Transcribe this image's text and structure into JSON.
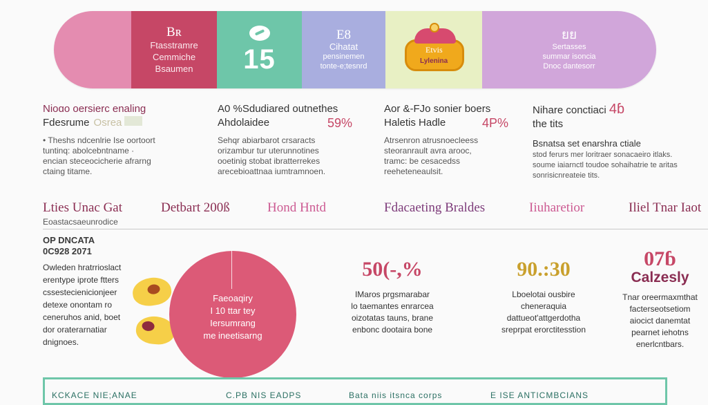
{
  "banner": {
    "seg1": {
      "top": "Bʀ",
      "lines": [
        "Ftasstramre",
        "Cemmiche",
        "Bsaumen"
      ]
    },
    "seg2": {
      "value": "15"
    },
    "seg3": {
      "top": "E8",
      "lines": [
        "Cihatat",
        "pensinemen",
        "tonte-e;tesnrd"
      ]
    },
    "seg4": {
      "label1": "Etvis",
      "label2": "Lylenina"
    },
    "seg5": {
      "top": "ยย",
      "lines": [
        "Sertasses",
        "summar isoncia",
        "Dnoc dantesorr"
      ]
    }
  },
  "columns": [
    {
      "heading": "Nioɑo oersierc enaling",
      "subheading": "Fdesrume",
      "subheading_muted": "Osrea",
      "body": [
        "• Theshs ndcenlrie Ise oortoort",
        "tuntinq: abolcebntname ·",
        "encian steceocicherie afrarng",
        "ctaing titame."
      ]
    },
    {
      "heading": "A0 %Sdudiared outnethes",
      "subheading": "Ahdolaidee",
      "pct": "59%",
      "body": [
        "Sehqr abiarbarot crsaracts",
        "orizambur tur uterunnotines",
        "ooetinig stobat ibratterrekes",
        "arecebioattnaa iumtramnoen."
      ]
    },
    {
      "heading": "Aor &-FJo sonier boers",
      "subheading": "Haletis Hadle",
      "pct": "4P%",
      "body": [
        "Atrsenron atrusnoecleess",
        "steoranrault avra arooc,",
        "tramc: be cesacedss",
        "reeheteneaulsit."
      ]
    },
    {
      "heading": "Nihare conctiaci",
      "heading_pct": "4ɓ",
      "subheading": "the tits",
      "body_strong": "Bsnatsa set enarshra ctiale",
      "body": [
        "stod ferurs mer loritraer sonacaeiro itlaks.",
        "soume iaiarnctl toudoe sohaihatrie te aritas",
        "sonrisicnreateie tits."
      ]
    }
  ],
  "headings_row": [
    "Lties Unac Gat",
    "Detbart 200ß",
    "Hond Hntd",
    "Fdacaeting Braldes",
    "Iiuharetior",
    "Iliel Tnar Iaot"
  ],
  "headings_sub": "Eoastacsaeunrodice",
  "left_block": {
    "title": [
      "OP DNCATA",
      "0C928 2071"
    ],
    "body": [
      "Owleden hratrrioslact",
      "erentype iprote ftters",
      "cssestecienicionjeer",
      "detexe onontam ro",
      "ceneruhos anid, boet",
      "dor oraterarnatiar",
      "dnignoes."
    ]
  },
  "circle_text": [
    "Faeoaqiry",
    "I 10 ttar tey",
    "Iersumrang",
    "me ineetisarng"
  ],
  "stats": [
    {
      "value": "50(-,%",
      "color": "#c64766",
      "body": [
        "IMaros prgsmarabar",
        "lo taemantes enrarcea",
        "oizotatas tauns, brane",
        "enbonc dootaira bone"
      ]
    },
    {
      "value": "90.:30",
      "color": "#c9a02d",
      "body": [
        "Lboelotai ousbire",
        "cheneraquia",
        "dattueot'attgerdotha",
        "sreprpat erorctitesstion"
      ]
    },
    {
      "value": "07ɓ",
      "sub": "Calzesly",
      "color": "#c64766",
      "body": [
        "Tnar oreermaxmthat",
        "facterseotsetiom",
        "aiocict danemtat",
        "pearnet iehotns",
        "enerlcntbars."
      ]
    }
  ],
  "bottom_labels": [
    "KCKACE NIE;ANAE",
    "C.PB NIS EADPS",
    "Bata niis itsnca corps",
    "E ISE ANTICMBCIANS"
  ]
}
